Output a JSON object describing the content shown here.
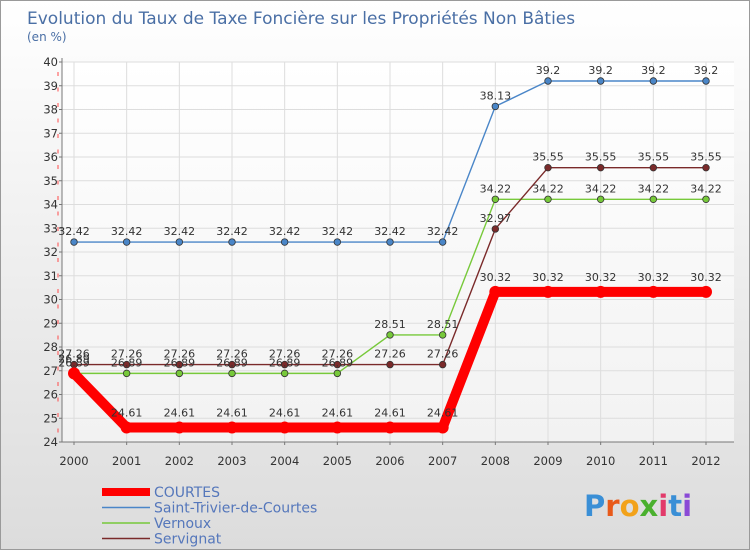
{
  "chart_data": {
    "type": "line",
    "title": "Evolution du Taux de Taxe Foncière sur les Propriétés Non Bâties",
    "ylabel": "(en %)",
    "xlabel": "",
    "ylim": [
      24,
      40
    ],
    "yticks": [
      24,
      25,
      26,
      27,
      28,
      29,
      30,
      31,
      32,
      33,
      34,
      35,
      36,
      37,
      38,
      39,
      40
    ],
    "categories": [
      "2000",
      "2001",
      "2002",
      "2003",
      "2004",
      "2005",
      "2006",
      "2007",
      "2008",
      "2009",
      "2010",
      "2011",
      "2012"
    ],
    "grid": true,
    "legend_position": "bottom-left",
    "series": [
      {
        "name": "Saint-Trivier-de-Courtes",
        "color": "#4a86c8",
        "values": [
          32.42,
          32.42,
          32.42,
          32.42,
          32.42,
          32.42,
          32.42,
          32.42,
          38.13,
          39.2,
          39.2,
          39.2,
          39.2
        ],
        "labels": [
          "32.42",
          "32.42",
          "32.42",
          "32.42",
          "32.42",
          "32.42",
          "32.42",
          "32.42",
          "38.13",
          "39.2",
          "39.2",
          "39.2",
          "39.2"
        ]
      },
      {
        "name": "Vernoux",
        "color": "#77c93a",
        "values": [
          26.89,
          26.89,
          26.89,
          26.89,
          26.89,
          26.89,
          28.51,
          28.51,
          34.22,
          34.22,
          34.22,
          34.22,
          34.22
        ],
        "labels": [
          "26.89",
          "26.89",
          "26.89",
          "26.89",
          "26.89",
          "26.89",
          "28.51",
          "28.51",
          "34.22",
          "34.22",
          "34.22",
          "34.22",
          "34.22"
        ]
      },
      {
        "name": "Servignat",
        "color": "#7a2a2a",
        "values": [
          27.26,
          27.26,
          27.26,
          27.26,
          27.26,
          27.26,
          27.26,
          27.26,
          32.97,
          35.55,
          35.55,
          35.55,
          35.55
        ],
        "labels": [
          "27.26",
          "27.26",
          "27.26",
          "27.26",
          "27.26",
          "27.26",
          "27.26",
          "27.26",
          "32.97",
          "35.55",
          "35.55",
          "35.55",
          "35.55"
        ]
      },
      {
        "name": "COURTES",
        "color": "#ff0000",
        "values": [
          26.89,
          24.61,
          24.61,
          24.61,
          24.61,
          24.61,
          24.61,
          24.61,
          30.32,
          30.32,
          30.32,
          30.32,
          30.32
        ],
        "labels": [
          "26.89",
          "24.61",
          "24.61",
          "24.61",
          "24.61",
          "24.61",
          "24.61",
          "24.61",
          "30.32",
          "30.32",
          "30.32",
          "30.32",
          "30.32"
        ]
      }
    ],
    "legend": [
      "COURTES",
      "Saint-Trivier-de-Courtes",
      "Vernoux",
      "Servignat"
    ]
  },
  "brand": {
    "letters": [
      "P",
      "r",
      "o",
      "x",
      "i",
      "t",
      "i"
    ],
    "colors": [
      "#3a8fd6",
      "#e85a1a",
      "#f2a21a",
      "#4ab02e",
      "#e23a6a",
      "#3a8fd6",
      "#8a4ad6"
    ]
  }
}
